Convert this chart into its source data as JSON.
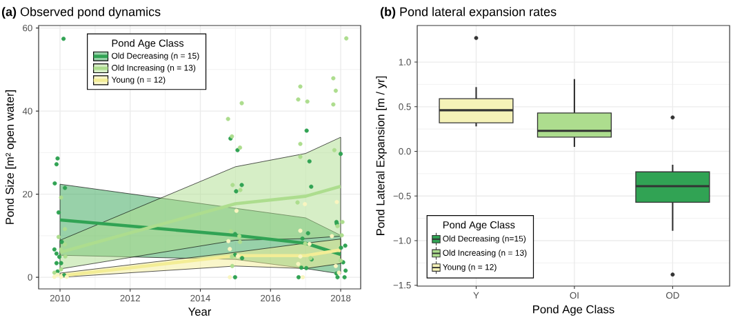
{
  "chart_data": [
    {
      "type": "line",
      "title": "**(a)** Observed pond dynamics",
      "xlabel": "Year",
      "ylabel": "Pond Size [m² open water]",
      "legend_title": "Pond Age Class",
      "legend": "top left",
      "grid": true,
      "xlim": [
        2009.39,
        2018.57
      ],
      "ylim": [
        -2.8,
        60.6
      ],
      "xticks": [
        2010,
        2012,
        2014,
        2016,
        2018
      ],
      "yticks": [
        0,
        20,
        40,
        60
      ],
      "series": [
        {
          "type": "line",
          "name": "Old Decreasing (n = 15)",
          "color": "#31a354",
          "x": [
            2010,
            2015,
            2017,
            2018
          ],
          "values": [
            13.8,
            10.1,
            8.2,
            5.5
          ],
          "lower": [
            5.3,
            4.3,
            2.1,
            0.8
          ],
          "upper": [
            22.4,
            16.6,
            14.3,
            10.1
          ]
        },
        {
          "type": "line",
          "name": "Old Increasing (n = 13)",
          "color": "#addd8e",
          "x": [
            2010,
            2015,
            2017,
            2018
          ],
          "values": [
            6.0,
            17.7,
            19.5,
            21.9
          ],
          "lower": [
            2.0,
            8.9,
            9.3,
            9.9
          ],
          "upper": [
            8.9,
            26.6,
            29.8,
            33.7
          ]
        },
        {
          "type": "line",
          "name": "Young (n = 12)",
          "color": "#f3ed96",
          "x": [
            2010,
            2015,
            2017,
            2018
          ],
          "values": [
            0.3,
            5.2,
            5.2,
            6.6
          ],
          "lower": [
            0.0,
            2.7,
            2.1,
            3.3
          ],
          "upper": [
            1.0,
            6.0,
            8.2,
            9.2
          ]
        },
        {
          "type": "scatter",
          "marker": "circle",
          "color": "#31a354",
          "x": [
            2010.1,
            2009.93,
            2009.9,
            2009.85,
            2010.14,
            2009.96,
            2010.05,
            2009.84,
            2009.9,
            2009.98,
            2009.9,
            2010.03,
            2009.93,
            2010.12,
            2014.86,
            2015.06,
            2017.03,
            2017.11,
            2018.0,
            2015.18,
            2015.02,
            2017.16,
            2017.88,
            2017.89,
            2014.99,
            2017.07,
            2016.91,
            2018.13,
            2018.01,
            2015.19,
            2014.99,
            2017.17,
            2016.88,
            2017.02,
            2018.07,
            2018.14,
            2017.88,
            2017.91,
            2018.11,
            2014.99,
            2016.8
          ],
          "values": [
            57.4,
            28.6,
            27.2,
            22.6,
            21.5,
            15.6,
            8.5,
            6.7,
            5.7,
            4.9,
            3.4,
            3.4,
            1.4,
            0.5,
            33.4,
            30.6,
            35.3,
            27.9,
            29.7,
            22.2,
            20.7,
            21.8,
            13.3,
            12.9,
            10.4,
            10.6,
            9.3,
            7.6,
            7.1,
            4.6,
            5.4,
            4.3,
            2.3,
            2.2,
            3.6,
            1.6,
            0.9,
            0.0,
            0.0,
            0.0,
            0.0
          ]
        },
        {
          "type": "scatter",
          "marker": "circle",
          "color": "#addd8e",
          "x": [
            2010.03,
            2010.14,
            2009.96,
            2010.14,
            2010.03,
            2010.15,
            2010.03,
            2009.84,
            2018.16,
            2017.79,
            2017.86,
            2016.85,
            2016.79,
            2017.05,
            2017.79,
            2015.18,
            2014.79,
            2014.9,
            2015.13,
            2016.85,
            2016.85,
            2017.82,
            2014.92,
            2015.14,
            2016.77,
            2018.05,
            2017.91,
            2014.87,
            2015.11,
            2015.13,
            2014.9,
            2014.91,
            2016.99,
            2017.14,
            2018.03,
            2018.0
          ],
          "values": [
            19.2,
            11.6,
            9.7,
            7.9,
            6.7,
            5.0,
            1.9,
            1.1,
            57.5,
            47.9,
            44.9,
            45.9,
            42.8,
            42.3,
            41.6,
            41.9,
            38.1,
            33.9,
            31.2,
            32.1,
            29.0,
            30.6,
            22.2,
            21.0,
            18.0,
            13.3,
            12.3,
            11.1,
            9.9,
            8.5,
            5.0,
            2.7,
            8.1,
            4.6,
            10.1,
            4.0
          ]
        },
        {
          "type": "scatter",
          "marker": "circle",
          "color": "#f9f5c0",
          "x": [
            2009.84,
            2010.03,
            2010.19,
            2009.93,
            2015.03,
            2016.98,
            2017.89,
            2016.85,
            2014.8,
            2017.11,
            2017.75,
            2014.84,
            2015.07,
            2016.85,
            2016.79,
            2014.84,
            2016.92,
            2017.95,
            2017.86
          ],
          "values": [
            0.1,
            0.1,
            0.1,
            0.6,
            16.0,
            17.6,
            18.1,
            11.2,
            8.7,
            8.0,
            9.9,
            6.8,
            5.1,
            5.0,
            3.2,
            0.0,
            0.0,
            1.1,
            2.7
          ]
        }
      ]
    },
    {
      "type": "box",
      "title": "**(b)** Pond lateral expansion rates",
      "xlabel": "Pond Age Class",
      "ylabel": "Pond Lateral Expansion [m / yr]",
      "legend_title": "Pond Age Class",
      "legend": "bottom left",
      "grid": true,
      "categories": [
        "Y",
        "OI",
        "OD"
      ],
      "ylim": [
        -1.51,
        1.41
      ],
      "yticks": [
        {
          "value": -1.5,
          "label": "−1.5"
        },
        {
          "value": -1.0,
          "label": "−1.0"
        },
        {
          "value": -0.5,
          "label": "−0.5"
        },
        {
          "value": 0.0,
          "label": "0.0"
        },
        {
          "value": 0.5,
          "label": "0.5"
        },
        {
          "value": 1.0,
          "label": "1.0"
        }
      ],
      "series": [
        {
          "name": "Old Decreasing (n=15)",
          "color": "#31a354",
          "boxes": [
            null,
            null,
            {
              "low": -0.89,
              "q1": -0.57,
              "median": -0.39,
              "q3": -0.23,
              "high": -0.15,
              "outliers": [
                0.38,
                -1.38
              ]
            }
          ]
        },
        {
          "name": "Old Increasing (n = 13)",
          "color": "#addd8e",
          "boxes": [
            null,
            {
              "low": 0.05,
              "q1": 0.16,
              "median": 0.23,
              "q3": 0.43,
              "high": 0.81
            },
            null
          ]
        },
        {
          "name": "Young (n = 12)",
          "color": "#f5f2b8",
          "boxes": [
            {
              "low": 0.28,
              "q1": 0.32,
              "median": 0.46,
              "q3": 0.59,
              "high": 0.72,
              "outliers": [
                1.27
              ]
            },
            null,
            null
          ]
        }
      ]
    }
  ]
}
